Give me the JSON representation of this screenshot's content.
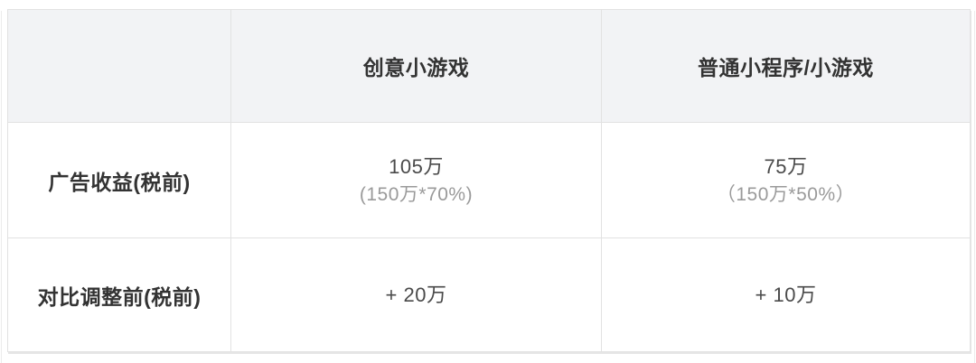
{
  "table": {
    "headers": [
      "",
      "创意小游戏",
      "普通小程序/小游戏"
    ],
    "rows": [
      {
        "label": "广告收益(税前)",
        "cells": [
          {
            "main": "105万",
            "sub": "(150万*70%)"
          },
          {
            "main": "75万",
            "sub": "（150万*50%）"
          }
        ]
      },
      {
        "label": "对比调整前(税前)",
        "cells": [
          {
            "main": "+ 20万",
            "sub": ""
          },
          {
            "main": "+ 10万",
            "sub": ""
          }
        ]
      }
    ]
  },
  "colors": {
    "header_background": "#f2f3f5",
    "border": "#e2e2e2",
    "primary_text": "#333333",
    "value_text": "#4a4a4a",
    "secondary_text": "#9a9a9a",
    "page_background": "#ffffff"
  }
}
